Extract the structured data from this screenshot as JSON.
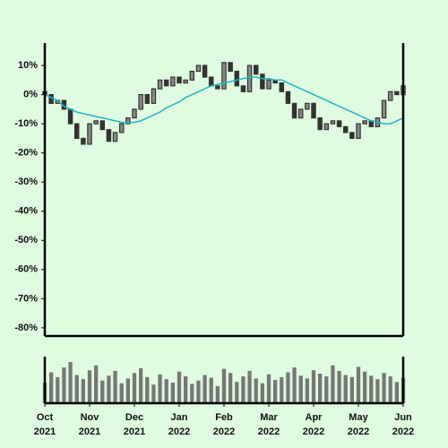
{
  "chart_data": {
    "type": "candlestick",
    "xlim": [
      0,
      56
    ],
    "xticks": [
      {
        "value": 0,
        "label": "Oct 2021"
      },
      {
        "value": 7,
        "label": "Nov 2021"
      },
      {
        "value": 14,
        "label": "Dec 2021"
      },
      {
        "value": 21,
        "label": "Jan 2022"
      },
      {
        "value": 28,
        "label": "Feb 2022"
      },
      {
        "value": 35,
        "label": "Mar 2022"
      },
      {
        "value": 42,
        "label": "Apr 2022"
      },
      {
        "value": 49,
        "label": "May 2022"
      },
      {
        "value": 56,
        "label": "Jun 2022"
      }
    ],
    "ylim": [
      -82.8,
      17.7
    ],
    "yticks": [
      {
        "value": 10,
        "label": "10%"
      },
      {
        "value": 0,
        "label": "0%"
      },
      {
        "value": -10,
        "label": "-10%"
      },
      {
        "value": -20,
        "label": "-20%"
      },
      {
        "value": -30,
        "label": "-30%"
      },
      {
        "value": -40,
        "label": "-40%"
      },
      {
        "value": -50,
        "label": "-50%"
      },
      {
        "value": -60,
        "label": "-60%"
      },
      {
        "value": -70,
        "label": "-70%"
      },
      {
        "value": -80,
        "label": "-80%"
      }
    ],
    "candle_color": "#333333",
    "open": [
      1,
      0,
      -3,
      -2,
      -5,
      -10,
      -15,
      -17,
      -10,
      -9,
      -12,
      -16,
      -13,
      -10,
      -8,
      -5,
      0,
      -3,
      2,
      5,
      3,
      6,
      4,
      5,
      8,
      10,
      6,
      3,
      2,
      11,
      8,
      3,
      1,
      10,
      7,
      2,
      5,
      4,
      1,
      -3,
      -8,
      -5,
      -3,
      -8,
      -12,
      -10,
      -9,
      -11,
      -13,
      -15,
      -10,
      -9,
      -11,
      -8,
      -2,
      1,
      0
    ],
    "close": [
      0,
      -3,
      -2,
      -5,
      -10,
      -15,
      -17,
      -10,
      -9,
      -12,
      -16,
      -13,
      -10,
      -8,
      -5,
      0,
      -3,
      2,
      5,
      3,
      6,
      4,
      5,
      8,
      10,
      6,
      3,
      2,
      11,
      8,
      3,
      1,
      10,
      7,
      2,
      5,
      4,
      1,
      -3,
      -8,
      -5,
      -3,
      -8,
      -12,
      -10,
      -9,
      -11,
      -13,
      -15,
      -10,
      -9,
      -11,
      -8,
      -2,
      1,
      0,
      3
    ],
    "moving_average": {
      "color": "#22b5c8",
      "values": [
        0,
        -1,
        -2,
        -4,
        -5,
        -6,
        -6.5,
        -7,
        -7.5,
        -8,
        -8.5,
        -9,
        -9.5,
        -9.7,
        -9.5,
        -9,
        -8,
        -7,
        -6,
        -4.5,
        -3.5,
        -2.5,
        -1,
        0,
        1,
        2,
        3,
        3.5,
        4,
        4.5,
        5,
        5.5,
        6,
        6,
        5.5,
        5.5,
        5,
        5,
        4,
        3,
        2,
        1,
        0,
        -1,
        -2,
        -3,
        -4,
        -5,
        -6,
        -7,
        -8,
        -9,
        -9.5,
        -10,
        -10,
        -9,
        -8
      ]
    },
    "volume": {
      "color": "#777777",
      "values": [
        30,
        45,
        38,
        52,
        60,
        41,
        35,
        48,
        55,
        33,
        40,
        47,
        29,
        36,
        44,
        51,
        38,
        27,
        42,
        35,
        30,
        46,
        39,
        28,
        33,
        41,
        37,
        25,
        50,
        44,
        31,
        39,
        47,
        36,
        29,
        42,
        34,
        38,
        45,
        52,
        40,
        36,
        48,
        43,
        39,
        55,
        47,
        41,
        38,
        53,
        46,
        40,
        35,
        44,
        39,
        31,
        37
      ]
    }
  }
}
